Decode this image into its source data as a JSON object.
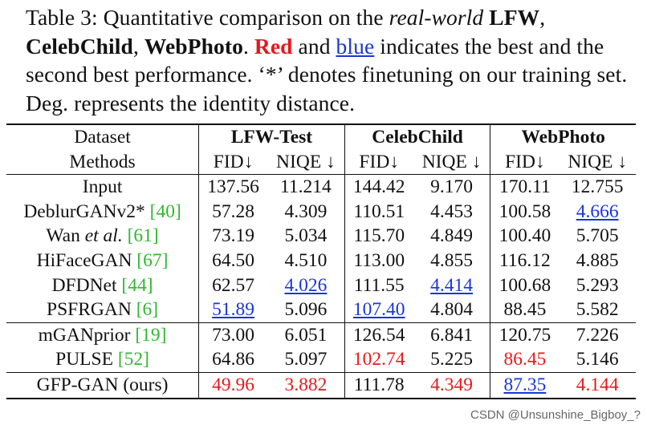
{
  "caption": {
    "prefix": "Table 3: Quantitative comparison on the ",
    "real_world": "real-world",
    "lfw": "LFW",
    "comma1": ", ",
    "celebchild": "CelebChild",
    "comma2": ", ",
    "webphoto": "WebPhoto",
    "period": ". ",
    "red_word": "Red",
    "and": " and ",
    "blue_word": "blue",
    "rest": " indicates the best and the second best performance. ‘*’ denotes finetuning on our training set. Deg. represents the identity distance."
  },
  "header": {
    "dataset_label": "Dataset",
    "methods_label": "Methods",
    "groups": [
      "LFW-Test",
      "CelebChild",
      "WebPhoto"
    ],
    "metrics": [
      "FID↓",
      "NIQE ↓",
      "FID↓",
      "NIQE ↓",
      "FID↓",
      "NIQE ↓"
    ]
  },
  "rows": [
    {
      "method": "Input",
      "cite": "",
      "values": [
        "137.56",
        "11.214",
        "144.42",
        "9.170",
        "170.11",
        "12.755"
      ]
    },
    {
      "method": "DeblurGANv2* ",
      "cite": "[40]",
      "values": [
        "57.28",
        "4.309",
        "110.51",
        "4.453",
        "100.58",
        "4.666"
      ]
    },
    {
      "method": "Wan ",
      "method_it": "et al.",
      "cite": "[61]",
      "values": [
        "73.19",
        "5.034",
        "115.70",
        "4.849",
        "100.40",
        "5.705"
      ]
    },
    {
      "method": "HiFaceGAN ",
      "cite": "[67]",
      "values": [
        "64.50",
        "4.510",
        "113.00",
        "4.855",
        "116.12",
        "4.885"
      ]
    },
    {
      "method": "DFDNet ",
      "cite": "[44]",
      "values": [
        "62.57",
        "4.026",
        "111.55",
        "4.414",
        "100.68",
        "5.293"
      ]
    },
    {
      "method": "PSFRGAN ",
      "cite": "[6]",
      "values": [
        "51.89",
        "5.096",
        "107.40",
        "4.804",
        "88.45",
        "5.582"
      ]
    },
    {
      "method": "mGANprior ",
      "cite": "[19]",
      "values": [
        "73.00",
        "6.051",
        "126.54",
        "6.841",
        "120.75",
        "7.226"
      ]
    },
    {
      "method": "PULSE ",
      "cite": "[52]",
      "values": [
        "64.86",
        "5.097",
        "102.74",
        "5.225",
        "86.45",
        "5.146"
      ]
    },
    {
      "method": "GFP-GAN (ours)",
      "cite": "",
      "values": [
        "49.96",
        "3.882",
        "111.78",
        "4.349",
        "87.35",
        "4.144"
      ]
    }
  ],
  "watermark": "CSDN @Unsunshine_Bigboy_?",
  "colors": {
    "best": "#e8171c",
    "second": "#1a35d8",
    "cite": "#2fb82f"
  }
}
